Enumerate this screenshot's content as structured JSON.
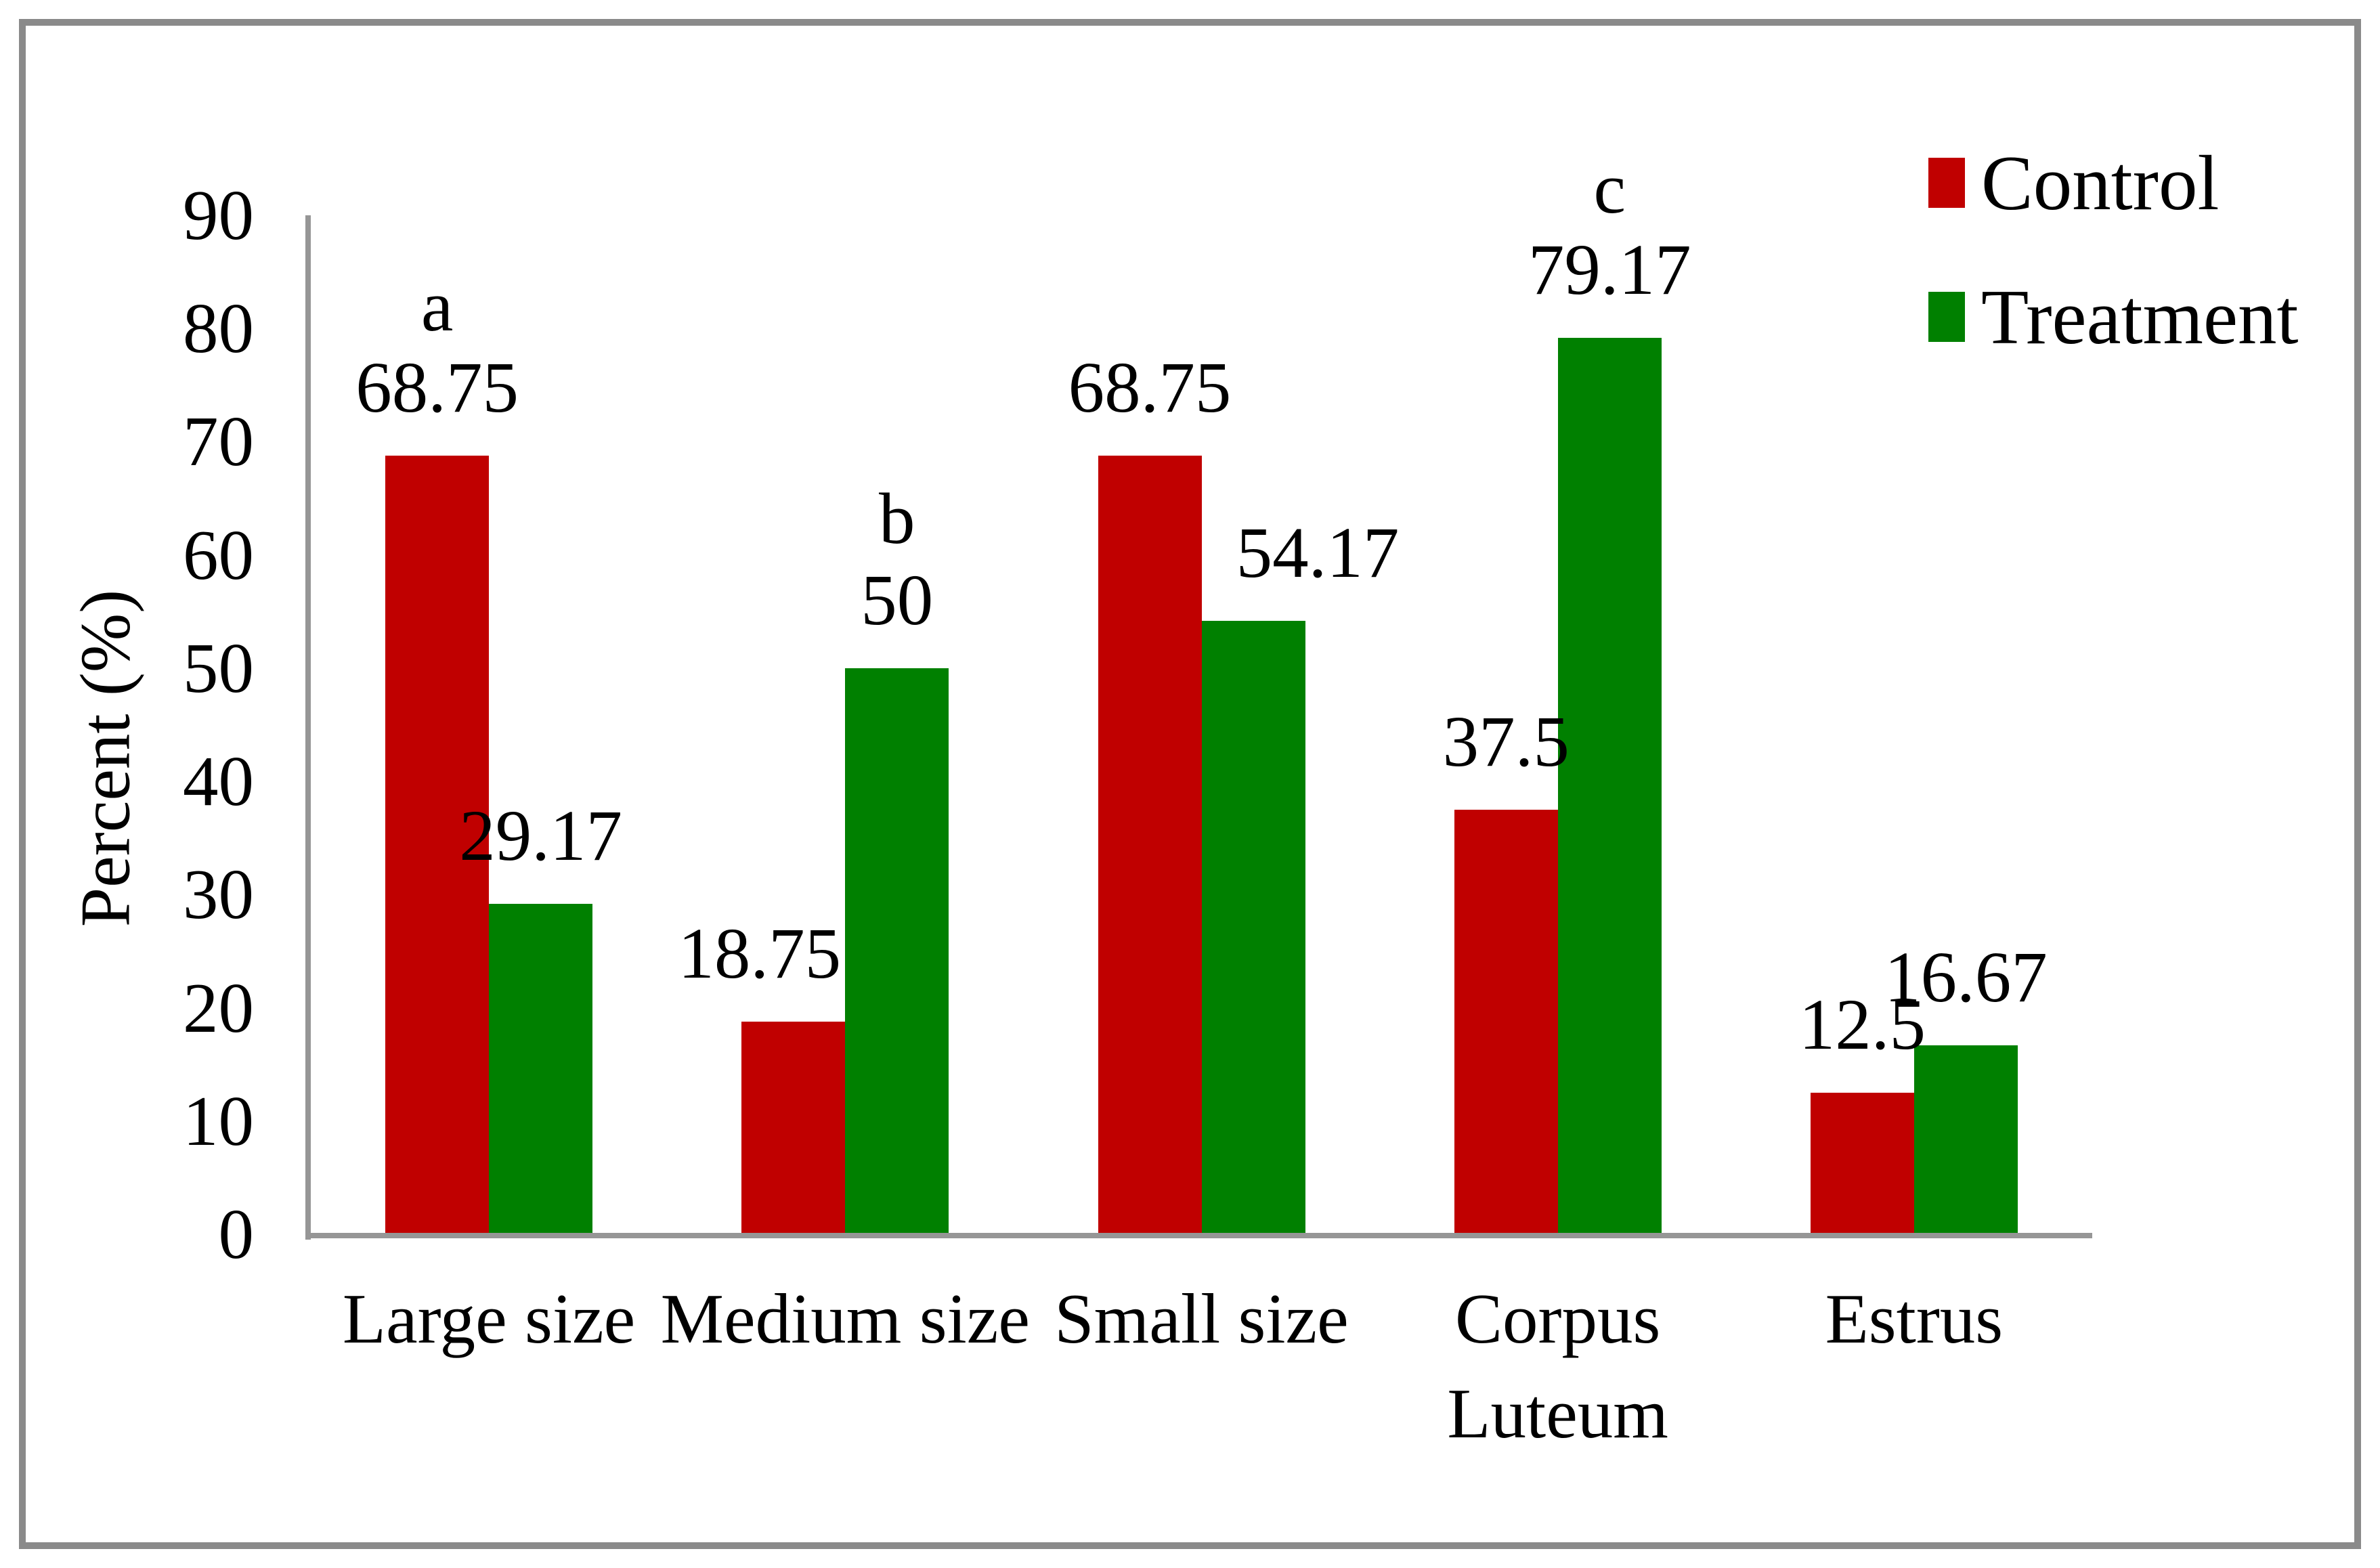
{
  "chart_data": {
    "type": "bar",
    "title": "",
    "ylabel": "Percent (%)",
    "xlabel": "",
    "ylim": [
      0,
      90
    ],
    "yticks": [
      0,
      10,
      20,
      30,
      40,
      50,
      60,
      70,
      80,
      90
    ],
    "grid": false,
    "legend_position": "top-right",
    "categories": [
      "Large size",
      "Medium size",
      "Small size",
      "Corpus Luteum",
      "Estrus"
    ],
    "series": [
      {
        "name": "Control",
        "color": "#C00000",
        "values": [
          68.75,
          18.75,
          68.75,
          37.5,
          12.5
        ],
        "labels": [
          "68.75",
          "18.75",
          "68.75",
          "37.5",
          "12.5"
        ]
      },
      {
        "name": "Treatment",
        "color": "#008000",
        "values": [
          29.17,
          50,
          54.17,
          79.17,
          16.67
        ],
        "labels": [
          "29.17",
          "50",
          "54.17",
          "79.17",
          "16.67"
        ]
      }
    ],
    "significance_letters": [
      {
        "category": "Large size",
        "series": "Control",
        "letter": "a"
      },
      {
        "category": "Medium size",
        "series": "Treatment",
        "letter": "b"
      },
      {
        "category": "Corpus Luteum",
        "series": "Treatment",
        "letter": "c"
      }
    ],
    "axis_color": "#969696",
    "frame_color": "#8a8a8a"
  }
}
